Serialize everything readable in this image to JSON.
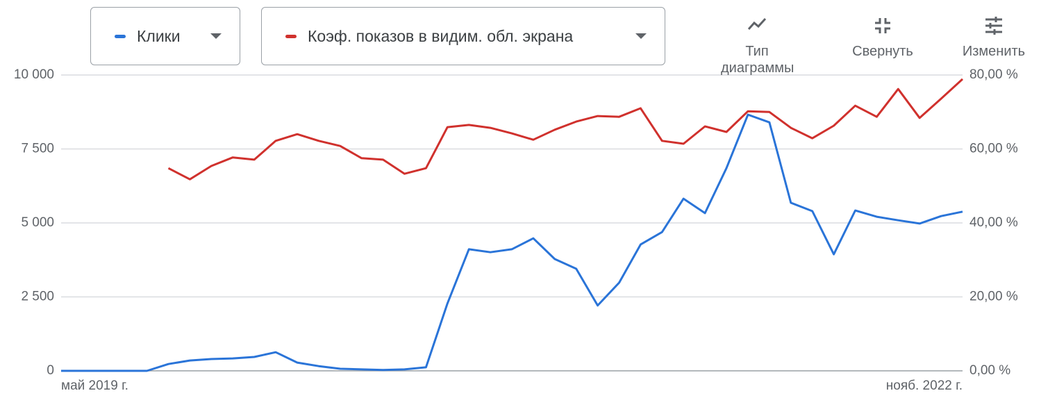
{
  "chart_data": {
    "type": "line",
    "categories": [
      "май 2019 г.",
      null,
      null,
      null,
      null,
      null,
      null,
      null,
      null,
      null,
      null,
      null,
      null,
      null,
      null,
      null,
      null,
      null,
      null,
      null,
      null,
      null,
      null,
      null,
      null,
      null,
      null,
      null,
      null,
      null,
      null,
      null,
      null,
      null,
      null,
      null,
      null,
      null,
      null,
      null,
      null,
      null,
      "нояб. 2022 г."
    ],
    "series": [
      {
        "name": "Клики",
        "color": "#2a74d8",
        "values": [
          0,
          0,
          0,
          0,
          0,
          230,
          350,
          400,
          420,
          470,
          630,
          280,
          160,
          70,
          50,
          30,
          50,
          120,
          2280,
          4110,
          4010,
          4110,
          4480,
          3780,
          3450,
          2210,
          2980,
          4270,
          4690,
          5820,
          5330,
          6850,
          8660,
          8400,
          5680,
          5400,
          3940,
          5420,
          5210,
          5090,
          4980,
          5230,
          5380
        ]
      },
      {
        "name": "Коэф. показов в видим. обл. экрана",
        "color": "#d0312d",
        "axis": "y2",
        "values": [
          null,
          null,
          null,
          null,
          null,
          54.8,
          51.8,
          55.4,
          57.7,
          57.1,
          62.2,
          64.0,
          62.2,
          60.8,
          57.5,
          57.1,
          53.3,
          54.8,
          65.9,
          66.5,
          65.7,
          64.2,
          62.5,
          65.2,
          67.4,
          68.9,
          68.7,
          71.0,
          62.2,
          61.4,
          66.1,
          64.6,
          70.2,
          70.0,
          65.7,
          62.9,
          66.3,
          71.7,
          68.7,
          76.2,
          68.4,
          73.6,
          78.9
        ]
      }
    ],
    "ylim": [
      0,
      10000
    ],
    "yticks": [
      0,
      {
        "value": 2500,
        "label": "2 500"
      },
      {
        "value": 5000,
        "label": "5 000"
      },
      {
        "value": 7500,
        "label": "7 500"
      },
      {
        "value": 10000,
        "label": "10 000"
      }
    ],
    "y2lim": [
      0,
      80
    ],
    "y2ticks": [
      {
        "value": 0,
        "label": "0,00 %"
      },
      {
        "value": 20,
        "label": "20,00 %"
      },
      {
        "value": 40,
        "label": "40,00 %"
      },
      {
        "value": 60,
        "label": "60,00 %"
      },
      {
        "value": 80,
        "label": "80,00 %"
      }
    ],
    "grid": true
  },
  "toolbar": {
    "buttons": [
      "Тип диаграммы",
      "Свернуть",
      "Изменить"
    ]
  }
}
